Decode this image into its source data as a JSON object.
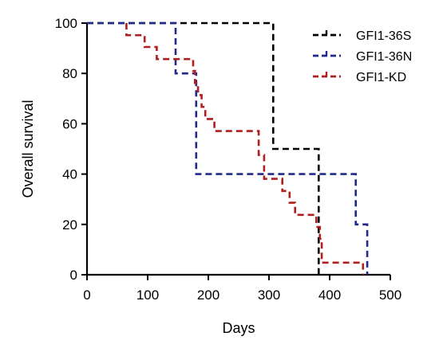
{
  "chart_data": {
    "type": "line",
    "xlabel": "Days",
    "ylabel": "Overall survival",
    "xlim": [
      0,
      500
    ],
    "ylim": [
      0,
      100
    ],
    "xticks": [
      "0",
      "100",
      "200",
      "300",
      "400",
      "500"
    ],
    "yticks": [
      "0",
      "20",
      "40",
      "60",
      "80",
      "100"
    ],
    "grid": false,
    "legend_placement": "top-right",
    "line_style": "dashed step (Kaplan-Meier)",
    "series": [
      {
        "name": "GFI1-36S",
        "color": "#000000",
        "points": [
          [
            0,
            100
          ],
          [
            307,
            100
          ],
          [
            307,
            50
          ],
          [
            382,
            50
          ],
          [
            382,
            0
          ]
        ]
      },
      {
        "name": "GFI1-36N",
        "color": "#1f2a8a",
        "points": [
          [
            0,
            100
          ],
          [
            146,
            100
          ],
          [
            146,
            80
          ],
          [
            180,
            80
          ],
          [
            180,
            40
          ],
          [
            443,
            40
          ],
          [
            443,
            20
          ],
          [
            462,
            20
          ],
          [
            462,
            0
          ]
        ]
      },
      {
        "name": "GFI1-KD",
        "color": "#b01f1f",
        "points": [
          [
            65,
            100
          ],
          [
            65,
            95.2
          ],
          [
            95,
            95.2
          ],
          [
            95,
            90.5
          ],
          [
            115,
            90.5
          ],
          [
            115,
            85.7
          ],
          [
            130,
            85.7
          ],
          [
            130,
            85.7
          ],
          [
            175,
            85.7
          ],
          [
            175,
            81
          ],
          [
            178,
            81
          ],
          [
            178,
            76.2
          ],
          [
            183,
            76.2
          ],
          [
            183,
            71.4
          ],
          [
            189,
            71.4
          ],
          [
            189,
            66.7
          ],
          [
            195,
            66.7
          ],
          [
            195,
            61.9
          ],
          [
            210,
            61.9
          ],
          [
            210,
            57.1
          ],
          [
            283,
            57.1
          ],
          [
            283,
            47.6
          ],
          [
            292,
            47.6
          ],
          [
            292,
            38.1
          ],
          [
            322,
            38.1
          ],
          [
            322,
            33.3
          ],
          [
            334,
            33.3
          ],
          [
            334,
            28.6
          ],
          [
            343,
            28.6
          ],
          [
            343,
            23.8
          ],
          [
            378,
            23.8
          ],
          [
            378,
            19
          ],
          [
            384,
            19
          ],
          [
            384,
            14.3
          ],
          [
            387,
            14.3
          ],
          [
            387,
            4.8
          ],
          [
            455,
            4.8
          ],
          [
            455,
            0
          ]
        ]
      }
    ]
  }
}
